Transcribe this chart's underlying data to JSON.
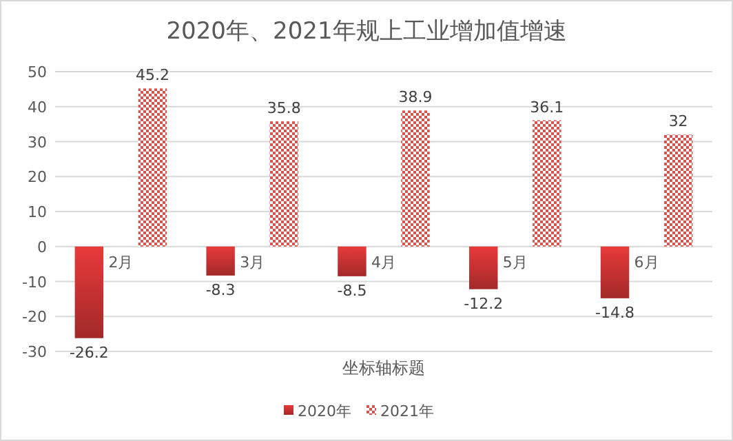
{
  "chart_data": {
    "type": "bar",
    "title": "2020年、2021年规上工业增加值增速",
    "xlabel": "坐标轴标题",
    "categories": [
      "2月",
      "3月",
      "4月",
      "5月",
      "6月"
    ],
    "series": [
      {
        "name": "2020年",
        "color": "#e83a3a",
        "values": [
          -26.2,
          -8.3,
          -8.5,
          -12.2,
          -14.8
        ]
      },
      {
        "name": "2021年",
        "color": "#d9534f",
        "values": [
          45.2,
          35.8,
          38.9,
          36.1,
          32
        ]
      }
    ],
    "ylim": [
      -30,
      50
    ],
    "yticks": [
      -30,
      -20,
      -10,
      0,
      10,
      20,
      30,
      40,
      50
    ],
    "grid": "y",
    "data_labels": true,
    "legend": "bottom"
  }
}
